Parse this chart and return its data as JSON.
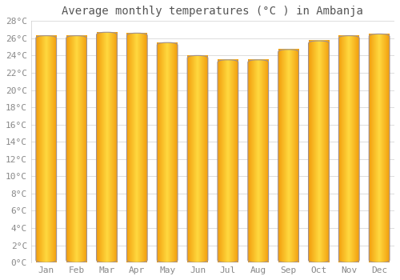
{
  "title": "Average monthly temperatures (°C ) in Ambanja",
  "months": [
    "Jan",
    "Feb",
    "Mar",
    "Apr",
    "May",
    "Jun",
    "Jul",
    "Aug",
    "Sep",
    "Oct",
    "Nov",
    "Dec"
  ],
  "values": [
    26.3,
    26.3,
    26.7,
    26.6,
    25.5,
    24.0,
    23.5,
    23.5,
    24.7,
    25.7,
    26.3,
    26.5
  ],
  "bar_color_center": "#FFD966",
  "bar_color_edge": "#F0A500",
  "bar_border_color": "#A09090",
  "ylim": [
    0,
    28
  ],
  "ytick_step": 2,
  "background_color": "#FFFFFF",
  "grid_color": "#DDDDDD",
  "title_fontsize": 10,
  "tick_fontsize": 8,
  "figsize": [
    5.0,
    3.5
  ],
  "dpi": 100
}
